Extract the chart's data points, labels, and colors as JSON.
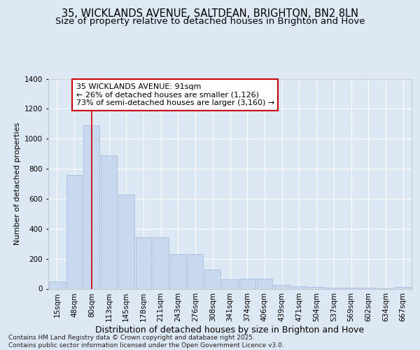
{
  "title_line1": "35, WICKLANDS AVENUE, SALTDEAN, BRIGHTON, BN2 8LN",
  "title_line2": "Size of property relative to detached houses in Brighton and Hove",
  "xlabel": "Distribution of detached houses by size in Brighton and Hove",
  "ylabel": "Number of detached properties",
  "categories": [
    "15sqm",
    "48sqm",
    "80sqm",
    "113sqm",
    "145sqm",
    "178sqm",
    "211sqm",
    "243sqm",
    "276sqm",
    "308sqm",
    "341sqm",
    "374sqm",
    "406sqm",
    "439sqm",
    "471sqm",
    "504sqm",
    "537sqm",
    "569sqm",
    "602sqm",
    "634sqm",
    "667sqm"
  ],
  "values": [
    50,
    760,
    1090,
    890,
    630,
    345,
    345,
    230,
    230,
    130,
    65,
    70,
    70,
    25,
    15,
    10,
    8,
    5,
    5,
    3,
    10
  ],
  "bar_color": "#c8d8ee",
  "bar_edge_color": "#aabcdc",
  "vline_x": 2,
  "vline_color": "#cc0000",
  "annotation_text": "35 WICKLANDS AVENUE: 91sqm\n← 26% of detached houses are smaller (1,126)\n73% of semi-detached houses are larger (3,160) →",
  "annotation_box_color": "#ffffff",
  "annotation_box_edge": "#cc0000",
  "bg_color": "#dde8f5",
  "plot_bg_color": "#dde8f5",
  "footnote": "Contains HM Land Registry data © Crown copyright and database right 2025.\nContains public sector information licensed under the Open Government Licence v3.0.",
  "ylim": [
    0,
    1400
  ],
  "yticks": [
    0,
    200,
    400,
    600,
    800,
    1000,
    1200,
    1400
  ],
  "title_fontsize": 10.5,
  "subtitle_fontsize": 9.5,
  "xlabel_fontsize": 9,
  "ylabel_fontsize": 8,
  "tick_fontsize": 7.5,
  "annot_fontsize": 8,
  "footnote_fontsize": 6.5
}
